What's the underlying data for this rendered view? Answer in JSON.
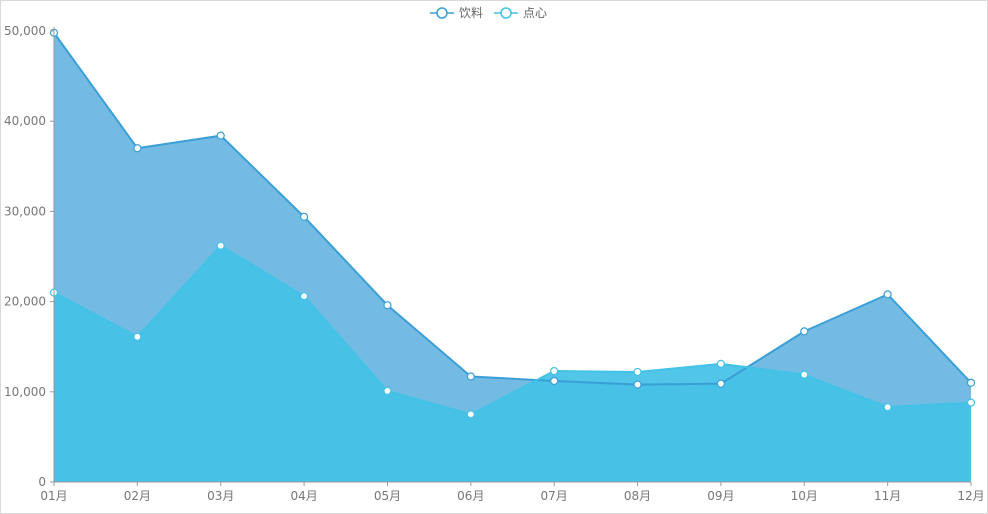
{
  "chart_data": {
    "type": "area",
    "title": "",
    "xlabel": "",
    "ylabel": "",
    "categories": [
      "01月",
      "02月",
      "03月",
      "04月",
      "05月",
      "06月",
      "07月",
      "08月",
      "09月",
      "10月",
      "11月",
      "12月"
    ],
    "series": [
      {
        "name": "饮料",
        "color": "#3a9fd6",
        "fill": "#74bbe4",
        "values": [
          49800,
          37000,
          38400,
          29400,
          19600,
          11700,
          11200,
          10800,
          10900,
          16700,
          20800,
          11000
        ]
      },
      {
        "name": "点心",
        "color": "#41c2e6",
        "fill": "#43c1e6",
        "values": [
          21000,
          16100,
          26200,
          20600,
          10100,
          7500,
          12300,
          12200,
          13100,
          11900,
          8300,
          8800
        ]
      }
    ],
    "yticks": [
      0,
      10000,
      20000,
      30000,
      40000,
      50000
    ],
    "ytick_labels": [
      "0",
      "10,000",
      "20,000",
      "30,000",
      "40,000",
      "50,000"
    ],
    "ylim": [
      0,
      50000
    ],
    "legend_position": "top-center",
    "grid": false
  }
}
